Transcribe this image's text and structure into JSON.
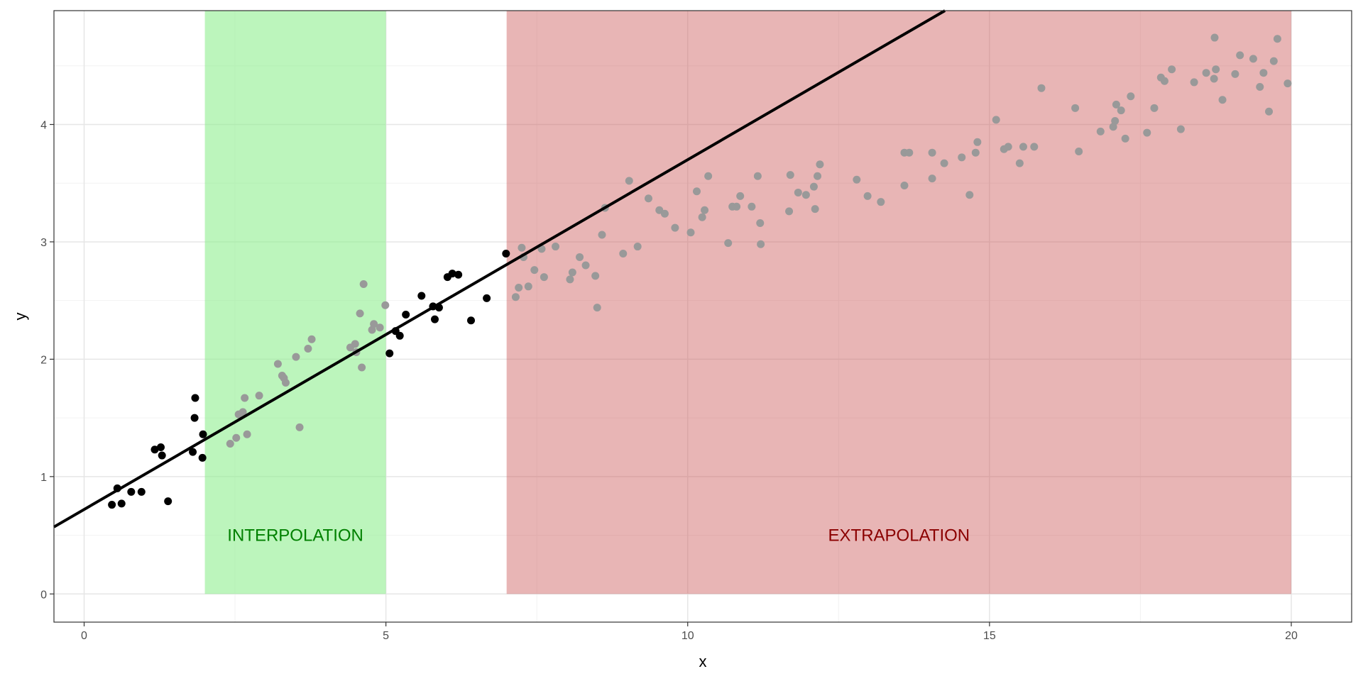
{
  "chart_data": {
    "type": "scatter",
    "title": "",
    "xlabel": "x",
    "ylabel": "y",
    "xlim": [
      -0.5,
      21
    ],
    "ylim": [
      -0.24,
      4.97
    ],
    "x_ticks": [
      0,
      5,
      10,
      15,
      20
    ],
    "y_ticks": [
      0,
      1,
      2,
      3,
      4
    ],
    "x_tick_labels": [
      "0",
      "5",
      "10",
      "15",
      "20"
    ],
    "y_tick_labels": [
      "0",
      "1",
      "2",
      "3",
      "4"
    ],
    "grid": true,
    "regions": [
      {
        "name": "INTERPOLATION",
        "xmin": 2,
        "xmax": 5,
        "fill": "#90EE90",
        "label_color": "#008000",
        "label_x": 3.5,
        "label_y": 0.5
      },
      {
        "name": "EXTRAPOLATION",
        "xmin": 7,
        "xmax": 20,
        "fill": "#CD5C5C",
        "label_color": "#8B0000",
        "label_x": 13.5,
        "label_y": 0.5
      }
    ],
    "fit_line": {
      "intercept": 0.72,
      "slope": 0.298,
      "color": "#000000"
    },
    "series": [
      {
        "name": "training",
        "color": "#000000",
        "points": [
          [
            0.46,
            0.76
          ],
          [
            0.55,
            0.9
          ],
          [
            0.62,
            0.77
          ],
          [
            0.78,
            0.87
          ],
          [
            0.95,
            0.87
          ],
          [
            1.17,
            1.23
          ],
          [
            1.27,
            1.25
          ],
          [
            1.29,
            1.18
          ],
          [
            1.39,
            0.79
          ],
          [
            1.8,
            1.21
          ],
          [
            1.83,
            1.5
          ],
          [
            1.84,
            1.67
          ],
          [
            1.96,
            1.16
          ],
          [
            1.97,
            1.36
          ],
          [
            5.06,
            2.05
          ],
          [
            5.16,
            2.24
          ],
          [
            5.23,
            2.2
          ],
          [
            5.33,
            2.38
          ],
          [
            5.59,
            2.54
          ],
          [
            5.78,
            2.45
          ],
          [
            5.81,
            2.34
          ],
          [
            5.88,
            2.44
          ],
          [
            6.02,
            2.7
          ],
          [
            6.1,
            2.73
          ],
          [
            6.2,
            2.72
          ],
          [
            6.41,
            2.33
          ],
          [
            6.67,
            2.52
          ],
          [
            6.99,
            2.9
          ]
        ]
      },
      {
        "name": "unseen",
        "color": "#999999",
        "points": [
          [
            2.42,
            1.28
          ],
          [
            2.52,
            1.33
          ],
          [
            2.56,
            1.53
          ],
          [
            2.63,
            1.55
          ],
          [
            2.66,
            1.67
          ],
          [
            2.7,
            1.36
          ],
          [
            2.9,
            1.69
          ],
          [
            3.21,
            1.96
          ],
          [
            3.28,
            1.86
          ],
          [
            3.31,
            1.84
          ],
          [
            3.34,
            1.8
          ],
          [
            3.51,
            2.02
          ],
          [
            3.57,
            1.42
          ],
          [
            3.71,
            2.09
          ],
          [
            3.77,
            2.17
          ],
          [
            4.41,
            2.1
          ],
          [
            4.49,
            2.13
          ],
          [
            4.51,
            2.06
          ],
          [
            4.57,
            2.39
          ],
          [
            4.6,
            1.93
          ],
          [
            4.63,
            2.64
          ],
          [
            4.77,
            2.25
          ],
          [
            4.8,
            2.3
          ],
          [
            4.9,
            2.27
          ],
          [
            4.99,
            2.46
          ],
          [
            7.15,
            2.53
          ],
          [
            7.2,
            2.61
          ],
          [
            7.25,
            2.95
          ],
          [
            7.28,
            2.87
          ],
          [
            7.36,
            2.62
          ],
          [
            7.46,
            2.76
          ],
          [
            7.58,
            2.94
          ],
          [
            7.62,
            2.7
          ],
          [
            7.81,
            2.96
          ],
          [
            8.05,
            2.68
          ],
          [
            8.09,
            2.74
          ],
          [
            8.21,
            2.87
          ],
          [
            8.31,
            2.8
          ],
          [
            8.47,
            2.71
          ],
          [
            8.5,
            2.44
          ],
          [
            8.58,
            3.06
          ],
          [
            8.63,
            3.29
          ],
          [
            8.93,
            2.9
          ],
          [
            9.03,
            3.52
          ],
          [
            9.17,
            2.96
          ],
          [
            9.35,
            3.37
          ],
          [
            9.53,
            3.27
          ],
          [
            9.62,
            3.24
          ],
          [
            9.79,
            3.12
          ],
          [
            10.05,
            3.08
          ],
          [
            10.15,
            3.43
          ],
          [
            10.24,
            3.21
          ],
          [
            10.28,
            3.27
          ],
          [
            10.34,
            3.56
          ],
          [
            10.67,
            2.99
          ],
          [
            10.74,
            3.3
          ],
          [
            10.81,
            3.3
          ],
          [
            10.87,
            3.39
          ],
          [
            11.06,
            3.3
          ],
          [
            11.16,
            3.56
          ],
          [
            11.2,
            3.16
          ],
          [
            11.21,
            2.98
          ],
          [
            11.68,
            3.26
          ],
          [
            11.7,
            3.57
          ],
          [
            11.83,
            3.42
          ],
          [
            11.96,
            3.4
          ],
          [
            12.09,
            3.47
          ],
          [
            12.11,
            3.28
          ],
          [
            12.15,
            3.56
          ],
          [
            12.19,
            3.66
          ],
          [
            12.8,
            3.53
          ],
          [
            12.98,
            3.39
          ],
          [
            13.2,
            3.34
          ],
          [
            13.59,
            3.48
          ],
          [
            13.59,
            3.76
          ],
          [
            13.67,
            3.76
          ],
          [
            14.05,
            3.54
          ],
          [
            14.05,
            3.76
          ],
          [
            14.25,
            3.67
          ],
          [
            14.54,
            3.72
          ],
          [
            14.67,
            3.4
          ],
          [
            14.77,
            3.76
          ],
          [
            14.8,
            3.85
          ],
          [
            15.11,
            4.04
          ],
          [
            15.24,
            3.79
          ],
          [
            15.31,
            3.81
          ],
          [
            15.5,
            3.67
          ],
          [
            15.56,
            3.81
          ],
          [
            15.74,
            3.81
          ],
          [
            15.86,
            4.31
          ],
          [
            16.42,
            4.14
          ],
          [
            16.48,
            3.77
          ],
          [
            16.84,
            3.94
          ],
          [
            17.05,
            3.98
          ],
          [
            17.08,
            4.03
          ],
          [
            17.1,
            4.17
          ],
          [
            17.18,
            4.12
          ],
          [
            17.25,
            3.88
          ],
          [
            17.34,
            4.24
          ],
          [
            17.61,
            3.93
          ],
          [
            17.73,
            4.14
          ],
          [
            17.84,
            4.4
          ],
          [
            17.9,
            4.37
          ],
          [
            18.02,
            4.47
          ],
          [
            18.17,
            3.96
          ],
          [
            18.39,
            4.36
          ],
          [
            18.59,
            4.44
          ],
          [
            18.73,
            4.74
          ],
          [
            18.72,
            4.39
          ],
          [
            18.75,
            4.47
          ],
          [
            18.86,
            4.21
          ],
          [
            19.07,
            4.43
          ],
          [
            19.15,
            4.59
          ],
          [
            19.37,
            4.56
          ],
          [
            19.48,
            4.32
          ],
          [
            19.54,
            4.44
          ],
          [
            19.63,
            4.11
          ],
          [
            19.71,
            4.54
          ],
          [
            19.77,
            4.73
          ],
          [
            19.94,
            4.35
          ]
        ]
      }
    ]
  }
}
